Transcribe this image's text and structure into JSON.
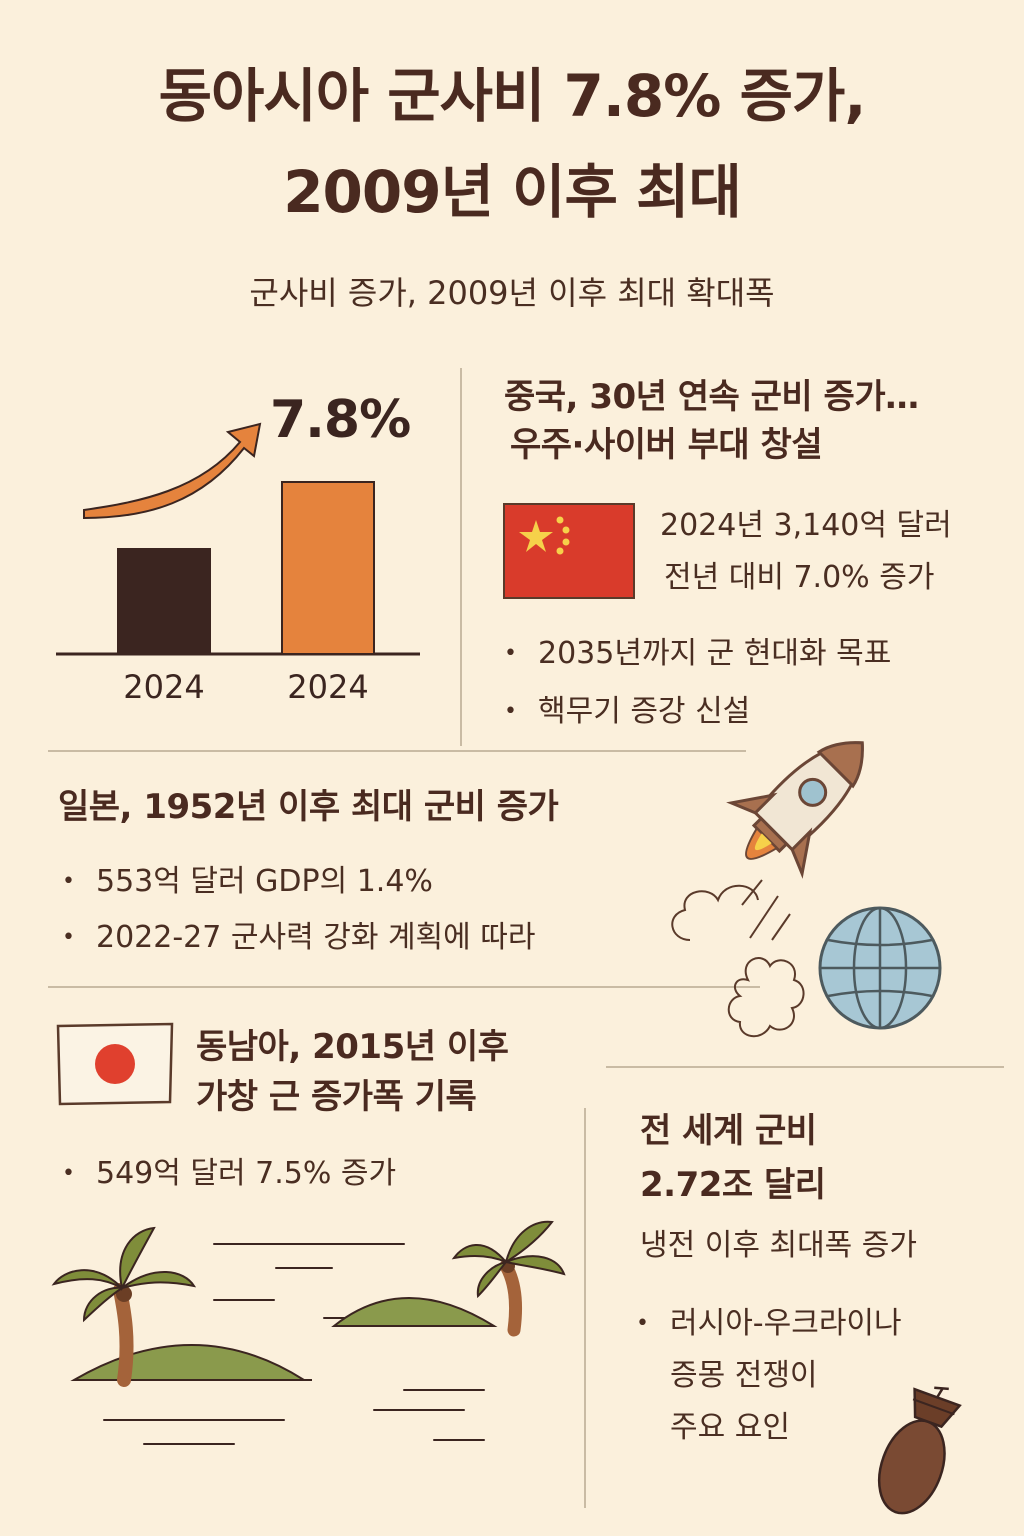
{
  "title": {
    "line1": "동아시아 군사비 7.8% 증가,",
    "line2": "2009년 이후 최대"
  },
  "subtitle": "군사비 증가, 2009년 이후 최대 확대폭",
  "growth_chart": {
    "percent_label": "7.8%",
    "chart_data": {
      "type": "bar",
      "categories": [
        "2024",
        "2024"
      ],
      "values": [
        105,
        172
      ],
      "colors": [
        "#3b2520",
        "#e5833d"
      ],
      "title": "7.8%",
      "xlabel": "",
      "ylabel": ""
    }
  },
  "china": {
    "heading_line1": "중국, 30년 연속 군비 증가…",
    "heading_line2": "우주·사이버 부대 창설",
    "stat_line1": "2024년 3,140억 달러",
    "stat_line2": "전년 대비 7.0% 증가",
    "bullets": [
      "2035년까지 군 현대화 목표",
      "핵무기 증강 신설"
    ],
    "flag_color": "#d93b2b",
    "star_color": "#f6d14a"
  },
  "japan": {
    "heading": "일본, 1952년 이후 최대 군비 증가",
    "bullets": [
      "553억 달러 GDP의 1.4%",
      "2022-27 군사력 강화 계획에 따라"
    ],
    "flag_dot_color": "#e0402e"
  },
  "southeast_asia": {
    "heading_line1": "동남아, 2015년 이후",
    "heading_line2": "가창 근 증가폭 기록",
    "bullets": [
      "549억 달러 7.5% 증가"
    ]
  },
  "world": {
    "heading_line1": "전 세계 군비",
    "heading_line2": "2.72조 달리",
    "sub": "냉전 이후 최대폭 증가",
    "bullet_lines": [
      "러시아-우크라이나",
      "증몽 전쟁이",
      "주요 요인"
    ]
  },
  "icons": [
    "arrow-up-icon",
    "china-flag-icon",
    "rocket-icon",
    "globe-icon",
    "japan-flag-icon",
    "palm-island-icon",
    "bomb-icon"
  ]
}
